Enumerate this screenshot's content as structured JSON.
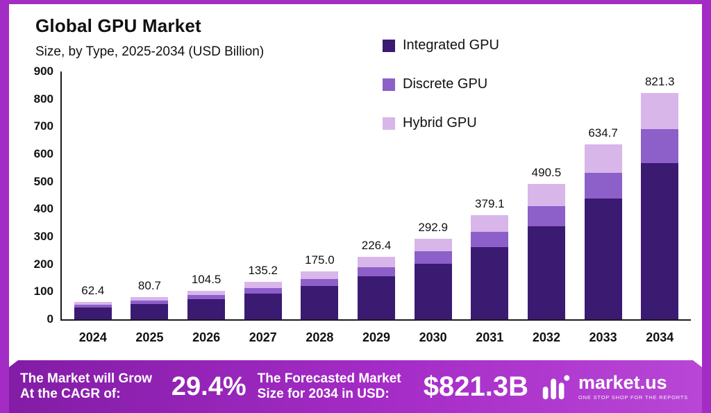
{
  "title": "Global GPU Market",
  "subtitle": "Size, by Type, 2025-2034 (USD Billion)",
  "legend": [
    {
      "label": "Integrated GPU",
      "color": "#3b1a72"
    },
    {
      "label": "Discrete GPU",
      "color": "#8c5fc9"
    },
    {
      "label": "Hybrid GPU",
      "color": "#d8b6ea"
    }
  ],
  "chart_data": {
    "type": "bar",
    "stacked": true,
    "title": "Global GPU Market Size, by Type, 2025-2034 (USD Billion)",
    "categories": [
      "2024",
      "2025",
      "2026",
      "2027",
      "2028",
      "2029",
      "2030",
      "2031",
      "2032",
      "2033",
      "2034"
    ],
    "totals": [
      62.4,
      80.7,
      104.5,
      135.2,
      175.0,
      226.4,
      292.9,
      379.1,
      490.5,
      634.7,
      821.3
    ],
    "totals_label": [
      "62.4",
      "80.7",
      "104.5",
      "135.2",
      "175.0",
      "226.4",
      "292.9",
      "379.1",
      "490.5",
      "634.7",
      "821.3"
    ],
    "series": [
      {
        "name": "Integrated GPU",
        "color": "#3b1a72",
        "values": [
          43.1,
          55.7,
          72.1,
          93.3,
          120.8,
          156.2,
          202.1,
          261.6,
          338.4,
          437.9,
          566.7
        ]
      },
      {
        "name": "Discrete GPU",
        "color": "#8c5fc9",
        "values": [
          9.4,
          12.1,
          15.7,
          20.3,
          26.3,
          34.0,
          43.9,
          56.9,
          73.6,
          95.2,
          123.2
        ]
      },
      {
        "name": "Hybrid GPU",
        "color": "#d8b6ea",
        "values": [
          9.9,
          12.9,
          16.7,
          21.6,
          27.9,
          36.2,
          46.9,
          60.6,
          78.5,
          101.6,
          131.4
        ]
      }
    ],
    "xlabel": "",
    "ylabel": "",
    "ylim": [
      0,
      900
    ],
    "yticks": [
      0,
      100,
      200,
      300,
      400,
      500,
      600,
      700,
      800,
      900
    ],
    "grid": false,
    "legend_position": "top-center"
  },
  "footer": {
    "cagr_label": "The Market will Grow At the CAGR of:",
    "cagr_value": "29.4%",
    "forecast_label": "The Forecasted Market Size for 2034 in USD:",
    "forecast_value": "$821.3B",
    "brand": "market.us",
    "brand_tagline": "ONE STOP SHOP FOR THE REPORTS"
  },
  "colors": {
    "frame": "#a32cc4",
    "banner_gradient_start": "#831ca6",
    "banner_gradient_end": "#b946d6",
    "axis": "#1a1a1a",
    "text": "#111111"
  }
}
